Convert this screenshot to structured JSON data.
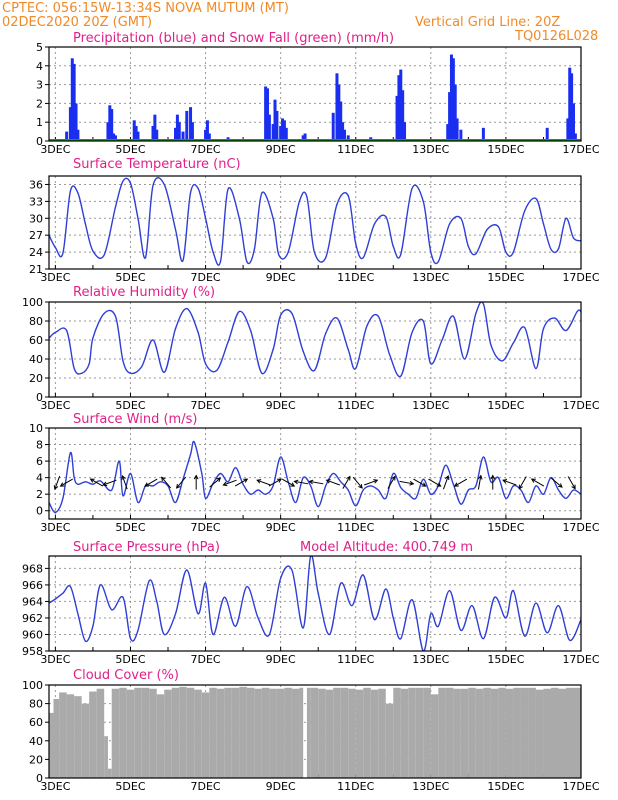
{
  "header": {
    "line1_left": "CPTEC:   056:15W-13:34S   NOVA MUTUM (MT)",
    "line2_left": "02DEC2020 20Z (GMT)",
    "line2_right": "Vertical Grid Line: 20Z",
    "line3_right": "TQ0126L028"
  },
  "colors": {
    "header": "#f08a28",
    "title": "#e0208a",
    "line": "#2f3fd6",
    "precip": "#1a2ef0",
    "snow": "#16a016",
    "cloud": "#aaaaaa",
    "grid": "#999999",
    "arrow": "#000000"
  },
  "x_axis": {
    "days": [
      "3DEC",
      "5DEC",
      "7DEC",
      "9DEC",
      "11DEC",
      "13DEC",
      "15DEC",
      "17DEC"
    ],
    "x_range_days": [
      2.83,
      17.0
    ]
  },
  "chart_data": [
    {
      "type": "bar",
      "title": "Precipitation (blue) and Snow Fall (green) (mm/h)",
      "ylim": [
        0,
        5
      ],
      "yticks": [
        0,
        1,
        2,
        3,
        4,
        5
      ],
      "series": [
        {
          "name": "Precipitation",
          "x": [
            3.3,
            3.4,
            3.45,
            3.5,
            3.55,
            3.6,
            4.4,
            4.45,
            4.5,
            4.55,
            4.6,
            4.7,
            5.1,
            5.15,
            5.2,
            5.6,
            5.65,
            5.7,
            6.2,
            6.25,
            6.3,
            6.4,
            6.5,
            6.6,
            6.65,
            7.0,
            7.05,
            7.1,
            7.6,
            8.6,
            8.65,
            8.7,
            8.8,
            8.85,
            8.9,
            9.0,
            9.05,
            9.1,
            9.15,
            9.6,
            9.65,
            10.4,
            10.5,
            10.55,
            10.6,
            10.65,
            10.7,
            10.8,
            11.4,
            12.1,
            12.15,
            12.2,
            12.25,
            12.3,
            13.45,
            13.5,
            13.55,
            13.6,
            13.65,
            13.7,
            13.8,
            14.4,
            16.1,
            16.65,
            16.7,
            16.75,
            16.8,
            16.85
          ],
          "values": [
            0.5,
            1.8,
            4.4,
            4.1,
            2.0,
            0.6,
            1.0,
            1.9,
            1.7,
            0.4,
            0.3,
            0.1,
            1.1,
            0.8,
            0.5,
            0.8,
            1.4,
            0.6,
            0.7,
            1.4,
            1.0,
            0.5,
            1.6,
            1.8,
            1.0,
            0.6,
            1.1,
            0.4,
            0.2,
            2.9,
            2.8,
            1.4,
            0.9,
            2.2,
            1.6,
            0.8,
            1.2,
            1.1,
            0.7,
            0.3,
            0.4,
            1.5,
            3.6,
            3.0,
            2.1,
            1.0,
            0.6,
            0.3,
            0.2,
            2.4,
            3.5,
            3.8,
            2.7,
            1.0,
            0.9,
            2.6,
            4.6,
            4.4,
            3.0,
            1.2,
            0.6,
            0.7,
            0.7,
            1.2,
            3.9,
            3.6,
            2.0,
            0.4
          ]
        },
        {
          "name": "Snow Fall",
          "x": [],
          "values": []
        }
      ]
    },
    {
      "type": "line",
      "title": "Surface Temperature (nC)",
      "ylim": [
        21,
        37.5
      ],
      "yticks": [
        21,
        24,
        27,
        30,
        33,
        36
      ],
      "x": [
        2.83,
        3.0,
        3.2,
        3.4,
        3.6,
        3.8,
        4.0,
        4.3,
        4.6,
        4.8,
        5.0,
        5.2,
        5.4,
        5.6,
        5.9,
        6.2,
        6.4,
        6.6,
        6.8,
        7.0,
        7.2,
        7.4,
        7.6,
        7.9,
        8.1,
        8.3,
        8.5,
        8.8,
        8.95,
        9.2,
        9.5,
        9.7,
        9.9,
        10.2,
        10.5,
        10.8,
        11.0,
        11.2,
        11.5,
        11.8,
        12.0,
        12.2,
        12.5,
        12.8,
        13.0,
        13.2,
        13.5,
        13.8,
        14.0,
        14.2,
        14.5,
        14.8,
        15.0,
        15.2,
        15.5,
        15.8,
        16.0,
        16.2,
        16.4,
        16.6,
        16.8,
        17.0
      ],
      "series": [
        {
          "name": "",
          "values": [
            27.0,
            24.8,
            23.8,
            34.8,
            34.5,
            29.0,
            24.2,
            23.5,
            32.0,
            36.6,
            36.2,
            30.0,
            23.0,
            35.8,
            36.0,
            28.0,
            22.5,
            34.5,
            35.3,
            30.0,
            24.0,
            22.4,
            35.2,
            30.0,
            22.3,
            24.5,
            34.5,
            30.0,
            23.5,
            24.0,
            33.0,
            33.8,
            24.0,
            23.0,
            32.5,
            34.0,
            25.5,
            23.0,
            29.0,
            30.3,
            25.0,
            23.6,
            35.3,
            33.0,
            24.0,
            22.3,
            29.0,
            30.0,
            25.0,
            23.7,
            28.0,
            28.5,
            24.0,
            24.0,
            31.3,
            33.5,
            29.0,
            24.5,
            24.6,
            30.0,
            26.5,
            26.0
          ]
        }
      ]
    },
    {
      "type": "line",
      "title": "Relative Humidity (%)",
      "ylim": [
        0,
        100
      ],
      "yticks": [
        0,
        20,
        40,
        60,
        80,
        100
      ],
      "x": [
        2.83,
        3.0,
        3.3,
        3.5,
        3.7,
        3.9,
        4.0,
        4.3,
        4.6,
        4.8,
        5.0,
        5.3,
        5.6,
        5.9,
        6.2,
        6.5,
        6.8,
        7.0,
        7.3,
        7.6,
        7.9,
        8.2,
        8.5,
        8.8,
        9.0,
        9.3,
        9.6,
        9.9,
        10.2,
        10.5,
        10.8,
        11.0,
        11.3,
        11.6,
        11.9,
        12.2,
        12.5,
        12.8,
        13.0,
        13.3,
        13.6,
        13.9,
        14.2,
        14.4,
        14.6,
        14.9,
        15.2,
        15.5,
        15.8,
        16.0,
        16.3,
        16.6,
        16.9,
        17.0
      ],
      "series": [
        {
          "name": "",
          "values": [
            62.0,
            68.0,
            70.0,
            30.0,
            25.0,
            35.0,
            62.0,
            88.0,
            85.0,
            38.0,
            25.0,
            32.0,
            60.0,
            26.0,
            72.0,
            93.0,
            68.0,
            35.0,
            28.0,
            58.0,
            90.0,
            70.0,
            25.0,
            50.0,
            86.0,
            88.0,
            48.0,
            28.0,
            67.0,
            83.0,
            50.0,
            30.0,
            75.0,
            85.0,
            45.0,
            22.0,
            68.0,
            80.0,
            35.0,
            60.0,
            85.0,
            40.0,
            88.0,
            98.0,
            55.0,
            38.0,
            57.0,
            73.0,
            30.0,
            72.0,
            83.0,
            70.0,
            90.0,
            90.0
          ]
        }
      ]
    },
    {
      "type": "line",
      "title": "Surface Wind (m/s)",
      "ylim": [
        -1,
        10
      ],
      "yticks": [
        0,
        2,
        4,
        6,
        8,
        10
      ],
      "x": [
        2.83,
        3.0,
        3.2,
        3.4,
        3.5,
        3.6,
        3.8,
        4.0,
        4.2,
        4.5,
        4.7,
        4.8,
        5.0,
        5.2,
        5.4,
        5.6,
        5.8,
        6.0,
        6.2,
        6.4,
        6.6,
        6.7,
        6.9,
        7.0,
        7.2,
        7.4,
        7.6,
        7.8,
        8.0,
        8.2,
        8.4,
        8.6,
        8.8,
        9.0,
        9.2,
        9.4,
        9.6,
        9.8,
        10.0,
        10.2,
        10.4,
        10.6,
        10.8,
        11.0,
        11.2,
        11.4,
        11.6,
        11.8,
        12.0,
        12.2,
        12.4,
        12.6,
        12.8,
        13.0,
        13.2,
        13.4,
        13.6,
        13.8,
        14.0,
        14.2,
        14.4,
        14.6,
        14.8,
        15.0,
        15.2,
        15.4,
        15.6,
        15.8,
        16.0,
        16.2,
        16.4,
        16.6,
        16.8,
        17.0
      ],
      "series": [
        {
          "name": "",
          "values": [
            1.0,
            -0.2,
            1.5,
            7.0,
            4.0,
            3.2,
            3.5,
            3.2,
            3.6,
            2.5,
            6.0,
            1.8,
            4.5,
            1.0,
            3.0,
            3.0,
            3.5,
            3.0,
            1.0,
            3.8,
            6.8,
            8.3,
            4.5,
            1.5,
            3.3,
            4.5,
            3.5,
            5.2,
            3.2,
            2.0,
            2.5,
            2.0,
            3.0,
            6.5,
            3.5,
            1.0,
            4.0,
            3.0,
            0.5,
            3.0,
            4.5,
            3.5,
            2.5,
            0.6,
            2.5,
            3.0,
            2.5,
            1.5,
            4.5,
            2.8,
            2.0,
            1.5,
            3.8,
            2.0,
            3.0,
            5.5,
            3.2,
            0.8,
            2.5,
            3.0,
            6.5,
            3.5,
            4.0,
            1.5,
            3.0,
            2.5,
            1.0,
            3.0,
            2.0,
            4.0,
            2.5,
            1.5,
            2.5,
            2.0
          ]
        }
      ],
      "arrows_x": [
        3.05,
        3.3,
        4.1,
        4.45,
        4.85,
        5.55,
        5.95,
        6.35,
        6.75,
        7.25,
        7.65,
        7.95,
        8.55,
        8.85,
        9.2,
        9.55,
        9.95,
        10.4,
        10.75,
        11.05,
        11.4,
        11.95,
        12.35,
        12.7,
        13.1,
        13.4,
        13.8,
        14.3,
        14.65,
        15.1,
        15.45,
        15.85,
        16.35,
        16.75
      ],
      "arrows_dir": [
        250,
        210,
        150,
        200,
        110,
        210,
        130,
        230,
        90,
        40,
        200,
        30,
        160,
        30,
        330,
        170,
        170,
        160,
        60,
        310,
        20,
        60,
        350,
        330,
        330,
        70,
        210,
        80,
        90,
        160,
        240,
        150,
        320,
        300
      ]
    },
    {
      "type": "line",
      "title": "Surface Pressure (hPa)",
      "annotation": "Model Altitude: 400.749  m",
      "ylim": [
        958,
        969.5
      ],
      "yticks": [
        958,
        960,
        962,
        964,
        966,
        968
      ],
      "x": [
        2.83,
        3.0,
        3.2,
        3.4,
        3.6,
        3.8,
        4.0,
        4.2,
        4.5,
        4.8,
        5.0,
        5.2,
        5.5,
        5.7,
        5.9,
        6.2,
        6.5,
        6.8,
        7.0,
        7.2,
        7.5,
        7.8,
        8.1,
        8.4,
        8.7,
        9.0,
        9.3,
        9.6,
        9.8,
        10.0,
        10.3,
        10.6,
        10.9,
        11.2,
        11.5,
        11.8,
        12.0,
        12.2,
        12.5,
        12.8,
        13.0,
        13.2,
        13.5,
        13.8,
        14.1,
        14.4,
        14.7,
        15.0,
        15.2,
        15.5,
        15.8,
        16.1,
        16.4,
        16.7,
        17.0
      ],
      "series": [
        {
          "name": "",
          "values": [
            963.8,
            964.3,
            965.0,
            965.8,
            962.5,
            959.2,
            961.0,
            966.0,
            963.0,
            964.5,
            959.5,
            960.5,
            966.5,
            964.0,
            960.0,
            962.5,
            967.8,
            962.5,
            966.2,
            960.0,
            964.5,
            961.0,
            965.8,
            962.0,
            960.0,
            966.8,
            967.8,
            960.8,
            969.5,
            965.0,
            960.0,
            966.2,
            963.5,
            967.2,
            961.8,
            965.5,
            962.0,
            959.5,
            964.2,
            958.0,
            962.5,
            961.0,
            965.3,
            960.5,
            963.5,
            959.5,
            964.5,
            962.0,
            965.3,
            959.8,
            963.8,
            960.2,
            963.5,
            959.3,
            961.8
          ]
        }
      ]
    },
    {
      "type": "area",
      "title": "Cloud Cover (%)",
      "ylim": [
        0,
        100
      ],
      "yticks": [
        0,
        20,
        40,
        60,
        80,
        100
      ],
      "x": [
        2.83,
        2.95,
        3.1,
        3.3,
        3.5,
        3.7,
        3.9,
        4.1,
        4.3,
        4.4,
        4.5,
        4.7,
        4.9,
        5.1,
        5.3,
        5.5,
        5.7,
        5.9,
        6.1,
        6.3,
        6.5,
        6.7,
        6.9,
        7.1,
        7.3,
        7.5,
        7.7,
        7.9,
        8.1,
        8.3,
        8.5,
        8.7,
        8.9,
        9.1,
        9.3,
        9.5,
        9.6,
        9.7,
        9.8,
        10.0,
        10.2,
        10.4,
        10.6,
        10.8,
        11.0,
        11.2,
        11.4,
        11.6,
        11.8,
        12.0,
        12.2,
        12.4,
        12.6,
        12.8,
        13.0,
        13.2,
        13.4,
        13.6,
        13.8,
        14.0,
        14.2,
        14.4,
        14.6,
        14.8,
        15.0,
        15.2,
        15.4,
        15.6,
        15.8,
        16.0,
        16.2,
        16.4,
        16.6,
        16.8,
        17.0
      ],
      "series": [
        {
          "name": "",
          "values": [
            70,
            85,
            92,
            90,
            88,
            80,
            93,
            96,
            45,
            10,
            96,
            97,
            95,
            97,
            97,
            96,
            90,
            95,
            97,
            98,
            97,
            95,
            92,
            97,
            96,
            97,
            97,
            98,
            97,
            96,
            97,
            96,
            96,
            97,
            96,
            97,
            0,
            97,
            97,
            96,
            95,
            97,
            97,
            96,
            95,
            97,
            95,
            96,
            80,
            97,
            96,
            97,
            97,
            97,
            90,
            97,
            97,
            96,
            96,
            97,
            96,
            97,
            96,
            97,
            96,
            97,
            97,
            97,
            95,
            96,
            97,
            96,
            97,
            97,
            96
          ]
        }
      ]
    }
  ]
}
